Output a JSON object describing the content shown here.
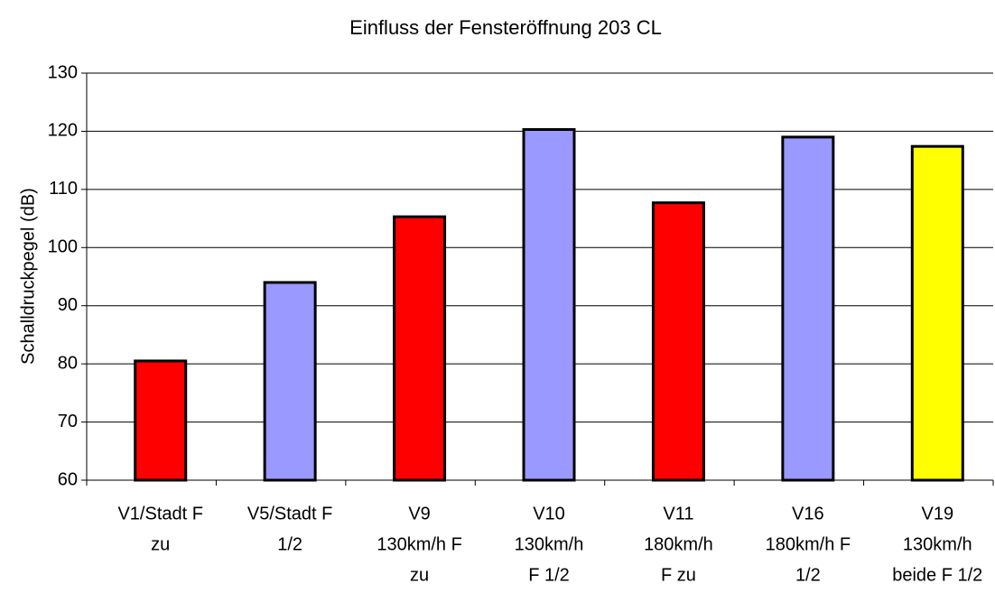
{
  "chart_data": {
    "type": "bar",
    "title": "Einfluss der Fensteröffnung 203 CL",
    "y_label": "Schalldruckpegel (dB)",
    "categories": [
      [
        "V1/Stadt F",
        "zu"
      ],
      [
        "V5/Stadt F",
        "1/2"
      ],
      [
        "V9",
        "130km/h F",
        "zu"
      ],
      [
        "V10",
        "130km/h",
        "F 1/2"
      ],
      [
        "V11",
        "180km/h",
        "F zu"
      ],
      [
        "V16",
        "180km/h F",
        "1/2"
      ],
      [
        "V19",
        "130km/h",
        "beide F 1/2"
      ]
    ],
    "values": [
      80.5,
      94,
      105.3,
      120.3,
      107.7,
      119,
      117.4
    ],
    "colors": [
      "#ff0000",
      "#9999ff",
      "#ff0000",
      "#9999ff",
      "#ff0000",
      "#9999ff",
      "#ffff00"
    ],
    "ylim": [
      60,
      130
    ],
    "yticks": [
      60,
      70,
      80,
      90,
      100,
      110,
      120,
      130
    ],
    "grid": true
  }
}
